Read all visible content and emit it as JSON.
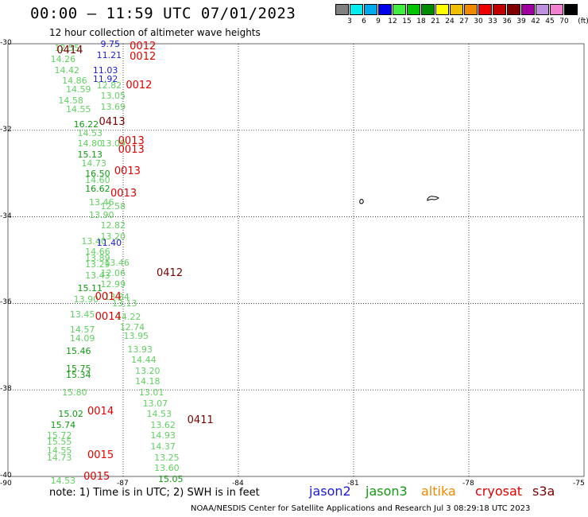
{
  "header": {
    "title": "00:00 – 11:59 UTC 07/01/2023",
    "subtitle": "12 hour collection of altimeter wave heights"
  },
  "legend": {
    "unit": "(ft)",
    "bins": [
      {
        "label": "3",
        "color": "#808080"
      },
      {
        "label": "6",
        "color": "#00eeee"
      },
      {
        "label": "9",
        "color": "#00a8ee"
      },
      {
        "label": "12",
        "color": "#0000e8"
      },
      {
        "label": "15",
        "color": "#40ee40"
      },
      {
        "label": "18",
        "color": "#00c400"
      },
      {
        "label": "21",
        "color": "#008c00"
      },
      {
        "label": "24",
        "color": "#ffff00"
      },
      {
        "label": "27",
        "color": "#f0c000"
      },
      {
        "label": "30",
        "color": "#f08800"
      },
      {
        "label": "33",
        "color": "#ee0000"
      },
      {
        "label": "36",
        "color": "#c00000"
      },
      {
        "label": "39",
        "color": "#800000"
      },
      {
        "label": "42",
        "color": "#a000a0"
      },
      {
        "label": "45",
        "color": "#c090e0"
      },
      {
        "label": "70",
        "color": "#f080d0"
      },
      {
        "label": "",
        "color": "#000000"
      }
    ]
  },
  "axes": {
    "lat_labels": [
      "-30",
      "-32",
      "-34",
      "-36",
      "-38",
      "-40"
    ],
    "lon_labels": [
      "-90",
      "-87",
      "-84",
      "-81",
      "-78",
      "-75"
    ],
    "lat_range": [
      -40,
      -30
    ],
    "lon_range": [
      -90,
      -75
    ],
    "grid": "dotted"
  },
  "observations": [
    {
      "lon": -88.5,
      "lat": -30.1,
      "text": "12.55",
      "sat": "jason3"
    },
    {
      "lon": -88.6,
      "lat": -30.35,
      "text": "14.26",
      "sat": "jason3"
    },
    {
      "lon": -88.5,
      "lat": -30.6,
      "text": "14.42",
      "sat": "jason3"
    },
    {
      "lon": -88.3,
      "lat": -30.85,
      "text": "14.86",
      "sat": "jason3"
    },
    {
      "lon": -88.2,
      "lat": -31.05,
      "text": "14.59",
      "sat": "jason3"
    },
    {
      "lon": -88.4,
      "lat": -31.3,
      "text": "14.58",
      "sat": "jason3"
    },
    {
      "lon": -88.2,
      "lat": -31.5,
      "text": "14.55",
      "sat": "jason3"
    },
    {
      "lon": -88.0,
      "lat": -31.85,
      "text": "16.22",
      "sat": "jason3-dark"
    },
    {
      "lon": -87.9,
      "lat": -32.05,
      "text": "14.53",
      "sat": "jason3"
    },
    {
      "lon": -87.9,
      "lat": -32.3,
      "text": "14.80",
      "sat": "jason3"
    },
    {
      "lon": -87.9,
      "lat": -32.55,
      "text": "15.13",
      "sat": "jason3-dark"
    },
    {
      "lon": -87.8,
      "lat": -32.75,
      "text": "14.73",
      "sat": "jason3"
    },
    {
      "lon": -87.7,
      "lat": -33.0,
      "text": "16.50",
      "sat": "jason3-dark"
    },
    {
      "lon": -87.7,
      "lat": -33.15,
      "text": "14.60",
      "sat": "jason3"
    },
    {
      "lon": -87.7,
      "lat": -33.35,
      "text": "16.62",
      "sat": "jason3-dark"
    },
    {
      "lon": -87.6,
      "lat": -33.65,
      "text": "13.46",
      "sat": "jason3"
    },
    {
      "lon": -87.6,
      "lat": -33.95,
      "text": "13.90",
      "sat": "jason3"
    },
    {
      "lon": -87.3,
      "lat": -34.2,
      "text": "12.82",
      "sat": "jason3"
    },
    {
      "lon": -87.3,
      "lat": -34.45,
      "text": "13.20",
      "sat": "jason3"
    },
    {
      "lon": -87.8,
      "lat": -34.55,
      "text": "13.40",
      "sat": "jason3"
    },
    {
      "lon": -87.7,
      "lat": -34.8,
      "text": "14.66",
      "sat": "jason3"
    },
    {
      "lon": -87.7,
      "lat": -34.95,
      "text": "13.89",
      "sat": "jason3"
    },
    {
      "lon": -87.7,
      "lat": -35.1,
      "text": "13.29",
      "sat": "jason3"
    },
    {
      "lon": -87.7,
      "lat": -35.35,
      "text": "13.43",
      "sat": "jason3"
    },
    {
      "lon": -87.2,
      "lat": -35.05,
      "text": "13.46",
      "sat": "jason3"
    },
    {
      "lon": -87.3,
      "lat": -35.3,
      "text": "12.06",
      "sat": "jason3"
    },
    {
      "lon": -87.3,
      "lat": -35.55,
      "text": "12.99",
      "sat": "jason3"
    },
    {
      "lon": -87.9,
      "lat": -35.65,
      "text": "15.11",
      "sat": "jason3-dark"
    },
    {
      "lon": -88.0,
      "lat": -35.9,
      "text": "13.90",
      "sat": "jason3"
    },
    {
      "lon": -87.0,
      "lat": -36.0,
      "text": "13.13",
      "sat": "jason3"
    },
    {
      "lon": -88.1,
      "lat": -36.25,
      "text": "13.45",
      "sat": "jason3"
    },
    {
      "lon": -86.9,
      "lat": -36.3,
      "text": "14.22",
      "sat": "jason3"
    },
    {
      "lon": -86.8,
      "lat": -36.55,
      "text": "12.74",
      "sat": "jason3"
    },
    {
      "lon": -88.1,
      "lat": -36.6,
      "text": "14.57",
      "sat": "jason3"
    },
    {
      "lon": -88.1,
      "lat": -36.8,
      "text": "14.09",
      "sat": "jason3"
    },
    {
      "lon": -86.7,
      "lat": -36.75,
      "text": "13.95",
      "sat": "jason3"
    },
    {
      "lon": -86.6,
      "lat": -37.05,
      "text": "13.93",
      "sat": "jason3"
    },
    {
      "lon": -88.2,
      "lat": -37.1,
      "text": "15.46",
      "sat": "jason3-dark"
    },
    {
      "lon": -86.5,
      "lat": -37.3,
      "text": "14.44",
      "sat": "jason3"
    },
    {
      "lon": -86.4,
      "lat": -37.55,
      "text": "13.20",
      "sat": "jason3"
    },
    {
      "lon": -88.2,
      "lat": -37.5,
      "text": "15.75",
      "sat": "jason3-dark"
    },
    {
      "lon": -88.2,
      "lat": -37.65,
      "text": "15.34",
      "sat": "jason3-dark"
    },
    {
      "lon": -86.4,
      "lat": -37.8,
      "text": "14.18",
      "sat": "jason3"
    },
    {
      "lon": -86.3,
      "lat": -38.05,
      "text": "13.01",
      "sat": "jason3"
    },
    {
      "lon": -88.3,
      "lat": -38.05,
      "text": "15.80",
      "sat": "jason3"
    },
    {
      "lon": -86.2,
      "lat": -38.3,
      "text": "13.07",
      "sat": "jason3"
    },
    {
      "lon": -86.1,
      "lat": -38.55,
      "text": "14.53",
      "sat": "jason3"
    },
    {
      "lon": -88.4,
      "lat": -38.55,
      "text": "15.02",
      "sat": "jason3-dark"
    },
    {
      "lon": -86.0,
      "lat": -38.8,
      "text": "13.62",
      "sat": "jason3"
    },
    {
      "lon": -88.6,
      "lat": -38.8,
      "text": "15.74",
      "sat": "jason3-dark"
    },
    {
      "lon": -86.0,
      "lat": -39.05,
      "text": "14.93",
      "sat": "jason3"
    },
    {
      "lon": -88.7,
      "lat": -39.05,
      "text": "15.72",
      "sat": "jason3"
    },
    {
      "lon": -88.7,
      "lat": -39.2,
      "text": "15.55",
      "sat": "jason3"
    },
    {
      "lon": -86.0,
      "lat": -39.3,
      "text": "14.37",
      "sat": "jason3"
    },
    {
      "lon": -88.7,
      "lat": -39.4,
      "text": "14.55",
      "sat": "jason3"
    },
    {
      "lon": -88.7,
      "lat": -39.55,
      "text": "14.73",
      "sat": "jason3"
    },
    {
      "lon": -85.9,
      "lat": -39.55,
      "text": "13.25",
      "sat": "jason3"
    },
    {
      "lon": -85.9,
      "lat": -39.8,
      "text": "13.60",
      "sat": "jason3"
    },
    {
      "lon": -85.8,
      "lat": -40.05,
      "text": "15.05",
      "sat": "jason3-dark"
    },
    {
      "lon": -88.6,
      "lat": -40.1,
      "text": "14.53",
      "sat": "jason3"
    },
    {
      "lon": -87.3,
      "lat": -30.0,
      "text": "9.75",
      "sat": "jason2"
    },
    {
      "lon": -87.4,
      "lat": -30.25,
      "text": "11.21",
      "sat": "jason2"
    },
    {
      "lon": -87.5,
      "lat": -30.6,
      "text": "11.03",
      "sat": "jason2"
    },
    {
      "lon": -87.5,
      "lat": -30.8,
      "text": "11.92",
      "sat": "jason2"
    },
    {
      "lon": -87.4,
      "lat": -34.6,
      "text": "11.40",
      "sat": "jason2"
    },
    {
      "lon": -87.4,
      "lat": -30.95,
      "text": "12.82",
      "sat": "jason3"
    },
    {
      "lon": -87.3,
      "lat": -31.2,
      "text": "13.05",
      "sat": "jason3"
    },
    {
      "lon": -87.3,
      "lat": -31.45,
      "text": "13.69",
      "sat": "jason3"
    },
    {
      "lon": -87.3,
      "lat": -32.3,
      "text": "13.09",
      "sat": "jason3"
    },
    {
      "lon": -87.3,
      "lat": -33.75,
      "text": "12.58",
      "sat": "jason3"
    },
    {
      "lon": -87.2,
      "lat": -35.85,
      "text": "13.84",
      "sat": "jason3"
    }
  ],
  "track_labels": [
    {
      "lon": -88.4,
      "lat": -30.15,
      "text": "0414",
      "sat": "cryosat-dark"
    },
    {
      "lon": -86.5,
      "lat": -30.05,
      "text": "0012",
      "sat": "cryosat"
    },
    {
      "lon": -86.5,
      "lat": -30.3,
      "text": "0012",
      "sat": "cryosat"
    },
    {
      "lon": -86.6,
      "lat": -30.95,
      "text": "0012",
      "sat": "cryosat"
    },
    {
      "lon": -87.3,
      "lat": -31.8,
      "text": "0413",
      "sat": "cryosat-dark"
    },
    {
      "lon": -86.8,
      "lat": -32.25,
      "text": "0013",
      "sat": "cryosat"
    },
    {
      "lon": -86.8,
      "lat": -32.45,
      "text": "0013",
      "sat": "cryosat"
    },
    {
      "lon": -86.9,
      "lat": -32.95,
      "text": "0013",
      "sat": "cryosat"
    },
    {
      "lon": -87.0,
      "lat": -33.45,
      "text": "0013",
      "sat": "cryosat"
    },
    {
      "lon": -85.8,
      "lat": -35.3,
      "text": "0412",
      "sat": "cryosat-dark"
    },
    {
      "lon": -87.4,
      "lat": -35.85,
      "text": "0014",
      "sat": "cryosat"
    },
    {
      "lon": -87.4,
      "lat": -36.3,
      "text": "0014",
      "sat": "cryosat"
    },
    {
      "lon": -87.6,
      "lat": -38.5,
      "text": "0014",
      "sat": "cryosat"
    },
    {
      "lon": -85.0,
      "lat": -38.7,
      "text": "0411",
      "sat": "cryosat-dark"
    },
    {
      "lon": -87.6,
      "lat": -39.5,
      "text": "0015",
      "sat": "cryosat"
    },
    {
      "lon": -87.7,
      "lat": -40.0,
      "text": "0015",
      "sat": "cryosat"
    }
  ],
  "note": "note:  1) Time is in UTC;  2) SWH is in feet",
  "satellites": [
    {
      "name": "jason2",
      "color": "#1a1ad8"
    },
    {
      "name": "jason3",
      "color": "#109a10"
    },
    {
      "name": "altika",
      "color": "#f08800"
    },
    {
      "name": "cryosat",
      "color": "#e00000"
    },
    {
      "name": "s3a",
      "color": "#7a0000"
    }
  ],
  "footer": "NOAA/NESDIS Center for Satellite Applications and Research    Jul  3 08:29:18 UTC 2023"
}
